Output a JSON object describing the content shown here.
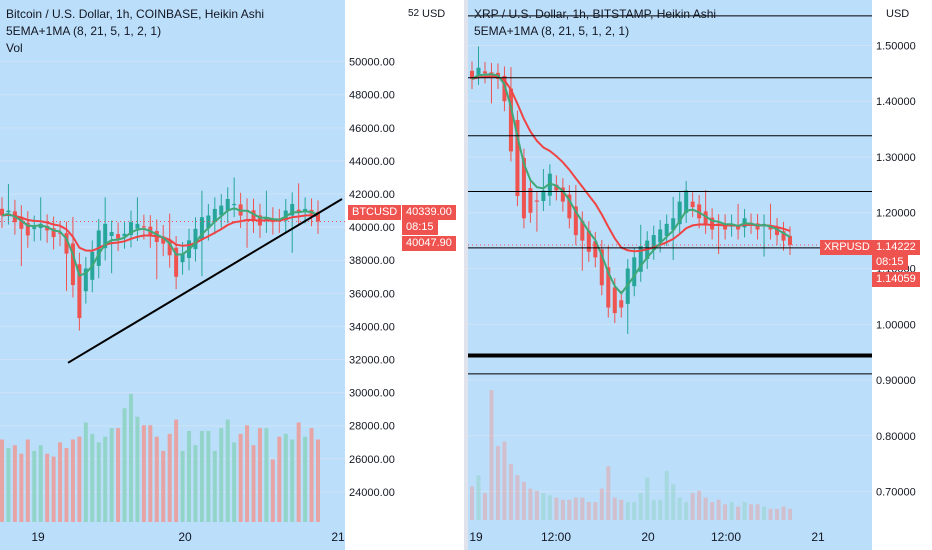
{
  "colors": {
    "bg": "#bbdefb",
    "up": "#26a69a",
    "down": "#ef5350",
    "ema_fast": "#3fa876",
    "ema_slow": "#ef4444",
    "vol_up": "#8fd3c4",
    "vol_down": "#e9a0a0",
    "grid": "#cfe3f7",
    "axis_text": "#131722"
  },
  "left": {
    "legend": {
      "title": "Bitcoin / U.S. Dollar, 1h, COINBASE, Heikin Ashi",
      "indicator": "5EMA+1MA (8, 21, 5, 1, 2, 1)",
      "vol": "Vol"
    },
    "currency": "USD",
    "partial_top_label": "52",
    "ticker": "BTCUSD",
    "price_last": "40339.00",
    "countdown": "08:15",
    "price_ema": "40047.90"
  },
  "right": {
    "legend": {
      "title": "XRP / U.S. Dollar, 1h, BITSTAMP, Heikin Ashi",
      "indicator": "5EMA+1MA (8, 21, 5, 1, 2, 1)"
    },
    "currency": "USD",
    "ticker": "XRPUSD",
    "price_last": "1.14222",
    "countdown": "08:15",
    "price_ema": "1.14059"
  },
  "chart_data": [
    {
      "type": "candlestick",
      "title": "Bitcoin / U.S. Dollar, 1h, COINBASE, Heikin Ashi",
      "y_ticks": [
        24000,
        26000,
        28000,
        30000,
        32000,
        34000,
        36000,
        38000,
        40000,
        42000,
        44000,
        46000,
        48000,
        50000
      ],
      "x_ticks": [
        "19",
        "20",
        "21"
      ],
      "ylim": [
        22000,
        53000
      ],
      "series": [
        {
          "name": "BTCUSD",
          "close": [
            40700,
            41000,
            40300,
            39900,
            39500,
            40000,
            40200,
            39800,
            39400,
            39600,
            38400,
            36500,
            34500,
            37500,
            38500,
            39800,
            40200,
            39700,
            39300,
            39600,
            40300,
            40200,
            40000,
            39500,
            39100,
            39000,
            38300,
            37000,
            38400,
            39200,
            39900,
            40600,
            40700,
            41100,
            41300,
            41700,
            41400,
            40700,
            41000,
            40400,
            40100,
            40600,
            40300,
            40400,
            41000,
            41400,
            40900,
            41100,
            40800,
            40339
          ]
        }
      ],
      "ema_fast_last": 40339,
      "ema_slow_last": 40047.9,
      "volume": [
        29,
        26,
        27,
        24,
        29,
        25,
        27,
        24,
        23,
        28,
        26,
        29,
        30,
        35,
        31,
        28,
        30,
        33,
        33,
        40,
        45,
        37,
        34,
        34,
        30,
        25,
        31,
        36,
        25,
        32,
        27,
        32,
        32,
        25,
        33,
        36,
        28,
        31,
        34,
        27,
        33,
        33,
        22,
        30,
        31,
        29,
        35,
        30,
        33,
        29
      ]
    },
    {
      "type": "candlestick",
      "title": "XRP / U.S. Dollar, 1h, BITSTAMP, Heikin Ashi",
      "y_ticks": [
        0.7,
        0.8,
        0.9,
        1.0,
        1.1,
        1.2,
        1.3,
        1.4,
        1.5
      ],
      "x_ticks": [
        "19",
        "12:00",
        "20",
        "12:00",
        "21"
      ],
      "ylim": [
        0.64,
        1.56
      ],
      "series": [
        {
          "name": "XRPUSD",
          "close": [
            1.44,
            1.46,
            1.45,
            1.45,
            1.44,
            1.4,
            1.31,
            1.23,
            1.19,
            1.2,
            1.22,
            1.24,
            1.27,
            1.24,
            1.22,
            1.19,
            1.16,
            1.15,
            1.13,
            1.12,
            1.07,
            1.03,
            1.02,
            1.03,
            1.1,
            1.12,
            1.14,
            1.15,
            1.16,
            1.17,
            1.18,
            1.19,
            1.22,
            1.24,
            1.21,
            1.19,
            1.18,
            1.17,
            1.18,
            1.17,
            1.18,
            1.17,
            1.19,
            1.18,
            1.17,
            1.18,
            1.17,
            1.16,
            1.15,
            1.14222
          ]
        }
      ],
      "ema_fast_last": 1.14222,
      "ema_slow_last": 1.14059,
      "volume": [
        15,
        20,
        12,
        58,
        33,
        35,
        25,
        20,
        17,
        14,
        13,
        12,
        11,
        10,
        9,
        9,
        10,
        10,
        8,
        8,
        14,
        24,
        10,
        9,
        8,
        8,
        12,
        19,
        9,
        9,
        22,
        16,
        10,
        8,
        12,
        13,
        10,
        8,
        9,
        7,
        8,
        6,
        8,
        7,
        7,
        6,
        5,
        5,
        6,
        5
      ]
    }
  ]
}
